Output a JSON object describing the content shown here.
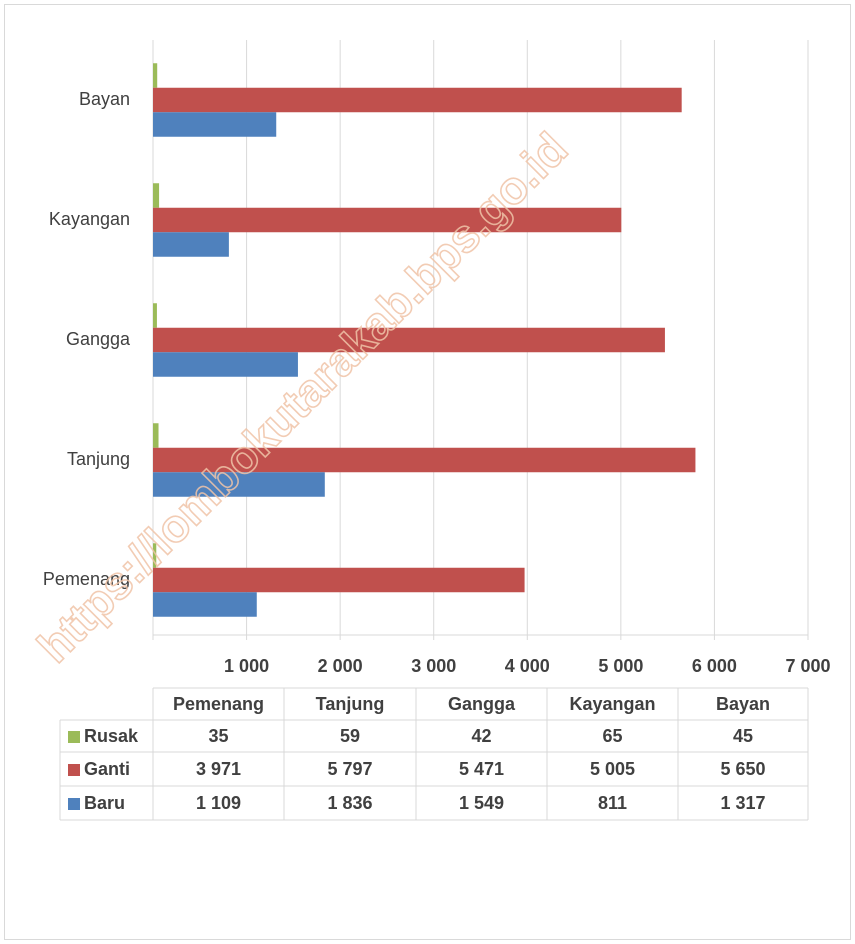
{
  "chart_data": {
    "type": "barh",
    "categories": [
      "Pemenang",
      "Tanjung",
      "Gangga",
      "Kayangan",
      "Bayan"
    ],
    "series": [
      {
        "name": "Rusak",
        "color": "#9bbb59",
        "values": [
          35,
          59,
          42,
          65,
          45
        ],
        "value_labels": [
          "35",
          "59",
          "42",
          "65",
          "45"
        ]
      },
      {
        "name": "Ganti",
        "color": "#c0504d",
        "values": [
          3971,
          5797,
          5471,
          5005,
          5650
        ],
        "value_labels": [
          "3 971",
          "5 797",
          "5 471",
          "5 005",
          "5 650"
        ]
      },
      {
        "name": "Baru",
        "color": "#4f81bd",
        "values": [
          1109,
          1836,
          1549,
          811,
          1317
        ],
        "value_labels": [
          "1 109",
          "1 836",
          "1 549",
          "811",
          "1 317"
        ]
      }
    ],
    "xlim": [
      0,
      7000
    ],
    "xticks": [
      {
        "value": 1000,
        "label": "1 000"
      },
      {
        "value": 2000,
        "label": "2 000"
      },
      {
        "value": 3000,
        "label": "3 000"
      },
      {
        "value": 4000,
        "label": "4 000"
      },
      {
        "value": 5000,
        "label": "5 000"
      },
      {
        "value": 6000,
        "label": "6 000"
      },
      {
        "value": 7000,
        "label": "7 000"
      }
    ],
    "grid": true,
    "data_table": true,
    "watermark": "https://lombokutarakab.bps.go.id"
  }
}
